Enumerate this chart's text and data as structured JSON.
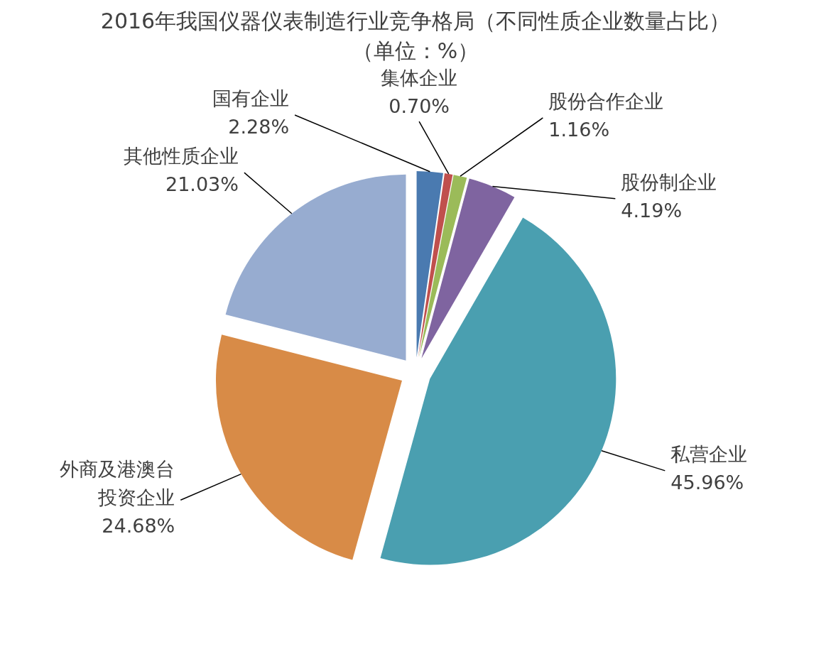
{
  "chart_data": {
    "type": "pie",
    "title": "2016年我国仪器仪表制造行业竞争格局（不同性质企业数量占比）",
    "subtitle": "（单位：%）",
    "categories": [
      "国有企业",
      "集体企业",
      "股份合作企业",
      "股份制企业",
      "私营企业",
      "外商及港澳台投资企业",
      "其他性质企业"
    ],
    "values": [
      2.28,
      0.7,
      1.16,
      4.19,
      45.96,
      24.68,
      21.03
    ],
    "colors": [
      "#4a7ab0",
      "#c0504d",
      "#9bbb59",
      "#7f64a0",
      "#4a9fb0",
      "#d88b47",
      "#97acd0"
    ],
    "value_labels": [
      "2.28%",
      "0.70%",
      "1.16%",
      "4.19%",
      "45.96%",
      "24.68%",
      "21.03%"
    ],
    "legend": false
  }
}
